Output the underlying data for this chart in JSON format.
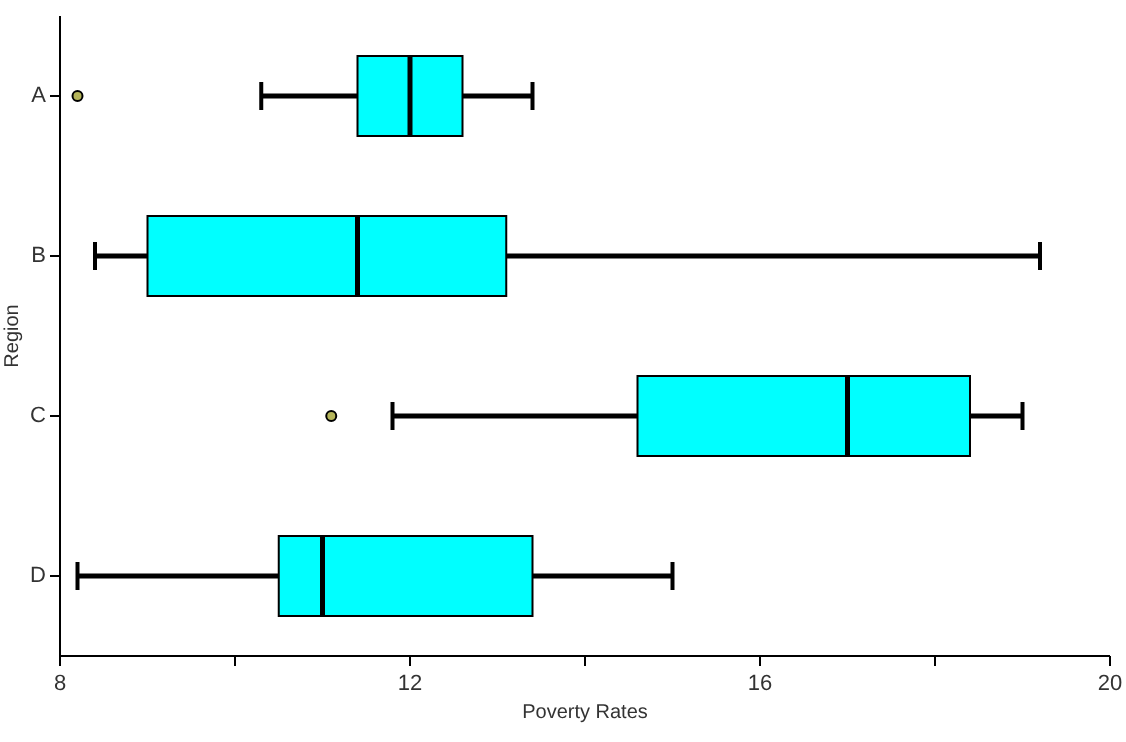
{
  "chart_data": {
    "type": "box",
    "orientation": "horizontal",
    "xlabel": "Poverty Rates",
    "ylabel": "Region",
    "categories": [
      "A",
      "B",
      "C",
      "D"
    ],
    "color": "#00ffff",
    "boxes": [
      {
        "low": 10.3,
        "q1": 11.4,
        "median": 12.0,
        "q3": 12.6,
        "high": 13.4,
        "outliers": [
          8.2
        ]
      },
      {
        "low": 8.4,
        "q1": 9.0,
        "median": 11.4,
        "q3": 13.1,
        "high": 19.2
      },
      {
        "low": 11.8,
        "q1": 14.6,
        "median": 17.0,
        "q3": 18.4,
        "high": 19.0,
        "outliers": [
          11.1
        ]
      },
      {
        "low": 8.2,
        "q1": 10.5,
        "median": 11.0,
        "q3": 13.4,
        "high": 15.0
      }
    ],
    "xlim": [
      8,
      20
    ],
    "xticks": [
      8,
      {
        "value": 10,
        "label": null
      },
      12,
      {
        "value": 14,
        "label": null
      },
      16,
      {
        "value": 18,
        "label": null
      },
      20
    ],
    "grid": false
  }
}
